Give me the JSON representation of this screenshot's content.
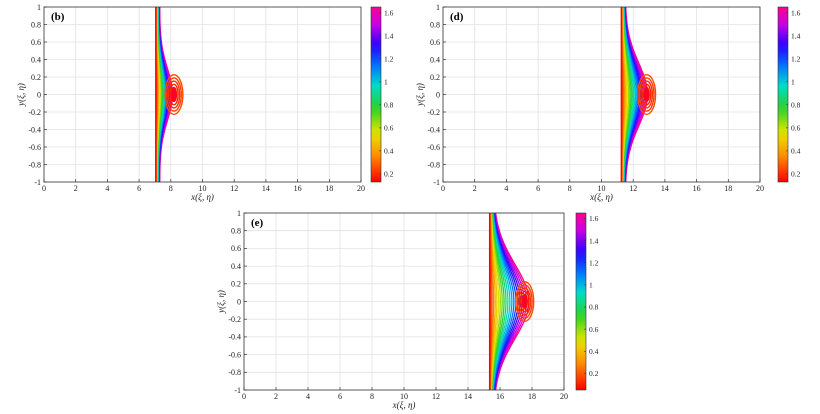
{
  "chart_data": [
    {
      "type": "contour",
      "panel_label": "(b)",
      "xlabel": "x(ξ, η)",
      "ylabel": "y(ξ, η)",
      "xlim": [
        0,
        20
      ],
      "ylim": [
        -1,
        1
      ],
      "xticks": [
        "0",
        "2",
        "4",
        "6",
        "8",
        "10",
        "12",
        "14",
        "16",
        "18",
        "20"
      ],
      "yticks": [
        "-1",
        "-0.8",
        "-0.6",
        "-0.4",
        "-0.2",
        "0",
        "0.2",
        "0.4",
        "0.6",
        "0.8",
        "1"
      ],
      "grid": true,
      "colorbar": {
        "ticks": [
          "0.2",
          "0.4",
          "0.6",
          "0.8",
          "1",
          "1.2",
          "1.4",
          "1.6"
        ],
        "range": [
          0.13,
          1.65
        ]
      },
      "front_x": 7.6,
      "bulge_amplitude": 0.8,
      "bulge_width": 0.3
    },
    {
      "type": "contour",
      "panel_label": "(d)",
      "xlabel": "x(ξ, η)",
      "ylabel": "y(ξ, η)",
      "xlim": [
        0,
        20
      ],
      "ylim": [
        -1,
        1
      ],
      "xticks": [
        "0",
        "2",
        "4",
        "6",
        "8",
        "10",
        "12",
        "14",
        "16",
        "18",
        "20"
      ],
      "yticks": [
        "-1",
        "-0.8",
        "-0.6",
        "-0.4",
        "-0.2",
        "0",
        "0.2",
        "0.4",
        "0.6",
        "0.8",
        "1"
      ],
      "grid": true,
      "colorbar": {
        "ticks": [
          "0.2",
          "0.4",
          "0.6",
          "0.8",
          "1",
          "1.2",
          "1.4",
          "1.6"
        ],
        "range": [
          0.13,
          1.65
        ]
      },
      "front_x": 11.8,
      "bulge_amplitude": 1.4,
      "bulge_width": 0.36
    },
    {
      "type": "contour",
      "panel_label": "(e)",
      "xlabel": "x(ξ, η)",
      "ylabel": "y(ξ, η)",
      "xlim": [
        0,
        20
      ],
      "ylim": [
        -1,
        1
      ],
      "xticks": [
        "0",
        "2",
        "4",
        "6",
        "8",
        "10",
        "12",
        "14",
        "16",
        "18",
        "20"
      ],
      "yticks": [
        "-1",
        "-0.8",
        "-0.6",
        "-0.4",
        "-0.2",
        "0",
        "0.2",
        "0.4",
        "0.6",
        "0.8",
        "1"
      ],
      "grid": true,
      "colorbar": {
        "ticks": [
          "0.2",
          "0.4",
          "0.6",
          "0.8",
          "1",
          "1.2",
          "1.4",
          "1.6"
        ],
        "range": [
          0.05,
          1.65
        ]
      },
      "front_x": 15.9,
      "bulge_amplitude": 2.2,
      "bulge_width": 0.42
    }
  ]
}
